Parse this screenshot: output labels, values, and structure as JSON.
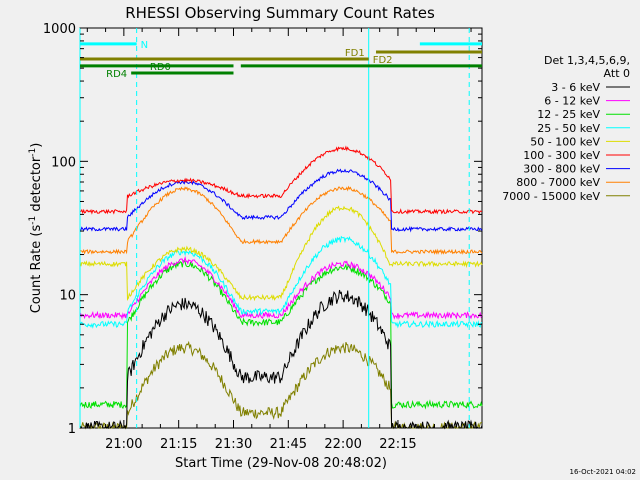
{
  "footer": {
    "date": "16-Oct-2021 04:02"
  },
  "chart_data": {
    "type": "line",
    "title": "RHESSI Observing Summary Count Rates",
    "xlabel": "Start Time (29-Nov-08 20:48:02)",
    "ylabel_main": "Count Rate (s",
    "ylabel_sup1": "-1",
    "ylabel_mid": " detector",
    "ylabel_sup2": "-1",
    "ylabel_end": ")",
    "y_scale": "log",
    "ylim": [
      1,
      1000
    ],
    "xlim_minutes": [
      -12,
      98
    ],
    "x_ticks": [
      {
        "min": 0,
        "label": "21:00"
      },
      {
        "min": 15,
        "label": "21:15"
      },
      {
        "min": 30,
        "label": "21:30"
      },
      {
        "min": 45,
        "label": "21:45"
      },
      {
        "min": 60,
        "label": "22:00"
      },
      {
        "min": 75,
        "label": "22:15"
      }
    ],
    "y_ticks": [
      {
        "value": 1,
        "label": "1"
      },
      {
        "value": 10,
        "label": "10"
      },
      {
        "value": 100,
        "label": "100"
      },
      {
        "value": 1000,
        "label": "1000"
      }
    ],
    "legend_header": [
      "Det 1,3,4,5,6,9,",
      "Att 0"
    ],
    "series": [
      {
        "name": "3 - 6 keV",
        "color": "#000000",
        "floor": 2.4,
        "peak1": 8.5,
        "peak2": 9.8,
        "edge_lo": 1.0,
        "edge_hi": 1.0,
        "noise": 0.12,
        "shadow": false
      },
      {
        "name": "6 - 12 keV",
        "color": "#ff00ff",
        "floor": 7.0,
        "peak1": 18,
        "peak2": 17,
        "edge_lo": 7.0,
        "edge_hi": 7.0,
        "noise": 0.05,
        "shadow": false
      },
      {
        "name": "12 - 25 keV",
        "color": "#00e000",
        "floor": 6.2,
        "peak1": 17,
        "peak2": 16,
        "edge_lo": 1.5,
        "edge_hi": 1.5,
        "noise": 0.06,
        "shadow": false
      },
      {
        "name": "25 - 50 keV",
        "color": "#00ffff",
        "floor": 7.5,
        "peak1": 21,
        "peak2": 26,
        "edge_lo": 6.0,
        "edge_hi": 6.0,
        "noise": 0.05,
        "shadow": false
      },
      {
        "name": "50 - 100 keV",
        "color": "#dddd00",
        "floor": 9.5,
        "peak1": 22,
        "peak2": 45,
        "edge_lo": 17,
        "edge_hi": 17,
        "noise": 0.04,
        "shadow": false
      },
      {
        "name": "100 - 300 keV",
        "color": "#ff0000",
        "floor": 55,
        "peak1": 72,
        "peak2": 125,
        "edge_lo": 42,
        "edge_hi": 42,
        "noise": 0.03,
        "shadow": false
      },
      {
        "name": "300 - 800 keV",
        "color": "#0000ff",
        "floor": 38,
        "peak1": 70,
        "peak2": 85,
        "edge_lo": 31,
        "edge_hi": 31,
        "noise": 0.03,
        "shadow": false
      },
      {
        "name": "800 - 7000 keV",
        "color": "#ff8000",
        "floor": 25,
        "peak1": 62,
        "peak2": 63,
        "edge_lo": 21,
        "edge_hi": 21,
        "noise": 0.03,
        "shadow": false
      },
      {
        "name": "7000 - 15000 keV",
        "color": "#808000",
        "floor": 1.3,
        "peak1": 4.0,
        "peak2": 4.0,
        "edge_lo": 1.0,
        "edge_hi": 1.0,
        "noise": 0.1,
        "shadow": false
      }
    ],
    "flag_bars": [
      {
        "label": "N",
        "color": "#00ffff",
        "segments": [
          [
            -12,
            3.5
          ],
          [
            81,
            98
          ]
        ],
        "label_at": 3.5,
        "label_side": "right",
        "y_value": 760
      },
      {
        "label": "FD1",
        "color": "#808000",
        "segments": [
          [
            69,
            98
          ]
        ],
        "label_at": 67,
        "label_side": "left",
        "y_value": 660
      },
      {
        "label": "FD2",
        "color": "#808000",
        "segments": [
          [
            -12,
            67
          ]
        ],
        "label_at": 67,
        "label_side": "right",
        "y_value": 585
      },
      {
        "label": "RD0",
        "color": "#008000",
        "segments": [
          [
            -12,
            30
          ],
          [
            32,
            98
          ]
        ],
        "label_at": 10,
        "label_side": "center",
        "y_value": 520
      },
      {
        "label": "RD4",
        "color": "#008000",
        "segments": [
          [
            2,
            30
          ]
        ],
        "label_at": 2,
        "label_side": "left",
        "y_value": 460
      }
    ],
    "vertical_markers": [
      {
        "min": -12,
        "color": "#00ffff",
        "style": "solid"
      },
      {
        "min": 3.5,
        "color": "#00ffff",
        "style": "dashed"
      },
      {
        "min": 67,
        "color": "#00ffff",
        "style": "solid"
      },
      {
        "min": 94.5,
        "color": "#00ffff",
        "style": "dashed"
      }
    ],
    "episodes": {
      "orbit1": [
        4,
        29
      ],
      "orbit2": [
        46,
        74
      ],
      "data_gap_start": [
        -12,
        1
      ],
      "data_gap_end": [
        73,
        98
      ]
    }
  }
}
